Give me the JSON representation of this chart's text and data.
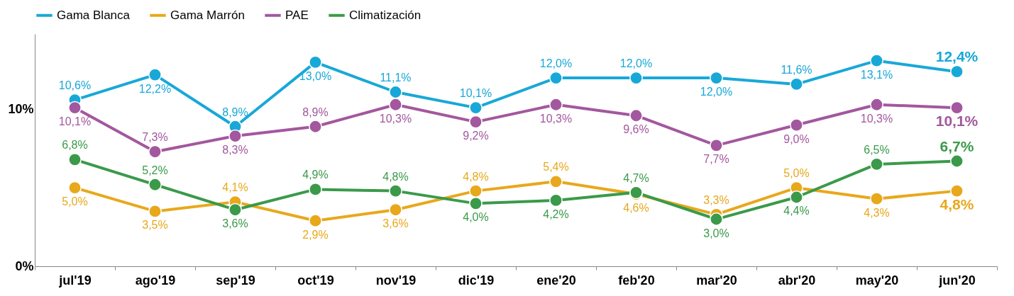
{
  "chart_data": {
    "type": "line",
    "categories": [
      "jul'19",
      "ago'19",
      "sep'19",
      "oct'19",
      "nov'19",
      "dic'19",
      "ene'20",
      "feb'20",
      "mar'20",
      "abr'20",
      "may'20",
      "jun'20"
    ],
    "series": [
      {
        "name": "Gama Blanca",
        "color": "#18a8d8",
        "values": [
          10.6,
          12.2,
          8.9,
          13.0,
          11.1,
          10.1,
          12.0,
          12.0,
          12.0,
          11.6,
          13.1,
          12.4
        ],
        "value_labels": [
          "10,6%",
          "12,2%",
          "8,9%",
          "13,0%",
          "11,1%",
          "10,1%",
          "12,0%",
          "12,0%",
          "12,0%",
          "11,6%",
          "13,1%",
          "12,4%"
        ]
      },
      {
        "name": "Gama Marrón",
        "color": "#e8a81c",
        "values": [
          5.0,
          3.5,
          4.1,
          2.9,
          3.6,
          4.8,
          5.4,
          4.6,
          3.3,
          5.0,
          4.3,
          4.8
        ],
        "value_labels": [
          "5,0%",
          "3,5%",
          "4,1%",
          "2,9%",
          "3,6%",
          "4,8%",
          "5,4%",
          "4,6%",
          "3,3%",
          "5,0%",
          "4,3%",
          "4,8%"
        ]
      },
      {
        "name": "PAE",
        "color": "#a3579e",
        "values": [
          10.1,
          7.3,
          8.3,
          8.9,
          10.3,
          9.2,
          10.3,
          9.6,
          7.7,
          9.0,
          10.3,
          10.1
        ],
        "value_labels": [
          "10,1%",
          "7,3%",
          "8,3%",
          "8,9%",
          "10,3%",
          "9,2%",
          "10,3%",
          "9,6%",
          "7,7%",
          "9,0%",
          "10,3%",
          "10,1%"
        ]
      },
      {
        "name": "Climatización",
        "color": "#3a9a4a",
        "values": [
          6.8,
          5.2,
          3.6,
          4.9,
          4.8,
          4.0,
          4.2,
          4.7,
          3.0,
          4.4,
          6.5,
          6.7
        ],
        "value_labels": [
          "6,8%",
          "5,2%",
          "3,6%",
          "4,9%",
          "4,8%",
          "4,0%",
          "4,2%",
          "4,7%",
          "3,0%",
          "4,4%",
          "6,5%",
          "6,7%"
        ]
      }
    ],
    "ylim": [
      0,
      14.8
    ],
    "yticks": [
      {
        "value": 0,
        "label": "0%"
      },
      {
        "value": 10,
        "label": "10%"
      }
    ],
    "grid": false,
    "legend": "top",
    "marker": "circle",
    "line_style": "solid"
  }
}
